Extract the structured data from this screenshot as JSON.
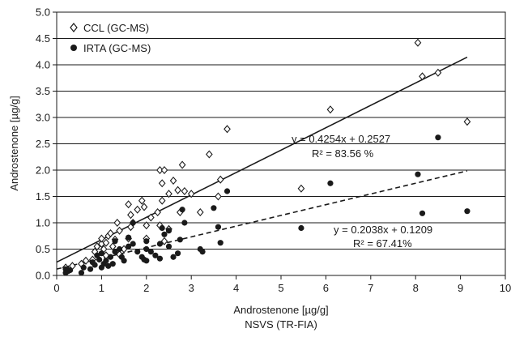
{
  "chart_data": {
    "type": "scatter",
    "xlabel": "Androstenone [µg/g]",
    "xlabel_sub": "NSVS (TR-FIA)",
    "ylabel": "Androstenone [µg/g]",
    "xlim": [
      0,
      10
    ],
    "ylim": [
      0,
      5.0
    ],
    "x_ticks": [
      "0",
      "1",
      "2",
      "3",
      "4",
      "5",
      "6",
      "7",
      "8",
      "9",
      "10"
    ],
    "y_ticks": [
      "0.0",
      "0.5",
      "1.0",
      "1.5",
      "2.0",
      "2.5",
      "3.0",
      "3.5",
      "4.0",
      "4.5",
      "5.0"
    ],
    "grid": "horizontal",
    "legend": "top-left",
    "series": [
      {
        "name": "CCL (GC-MS)",
        "marker": "open-diamond",
        "color": "#1a1a1a",
        "points": [
          [
            0.2,
            0.15
          ],
          [
            0.35,
            0.18
          ],
          [
            0.55,
            0.22
          ],
          [
            0.65,
            0.28
          ],
          [
            0.8,
            0.3
          ],
          [
            0.85,
            0.45
          ],
          [
            0.9,
            0.55
          ],
          [
            1.0,
            0.6
          ],
          [
            1.0,
            0.7
          ],
          [
            1.05,
            0.5
          ],
          [
            1.1,
            0.38
          ],
          [
            1.1,
            0.62
          ],
          [
            1.15,
            0.75
          ],
          [
            1.2,
            0.8
          ],
          [
            1.25,
            0.55
          ],
          [
            1.3,
            0.68
          ],
          [
            1.35,
            1.0
          ],
          [
            1.4,
            0.85
          ],
          [
            1.4,
            0.4
          ],
          [
            1.5,
            0.5
          ],
          [
            1.6,
            0.7
          ],
          [
            1.6,
            1.35
          ],
          [
            1.65,
            1.15
          ],
          [
            1.65,
            0.92
          ],
          [
            1.7,
            1.0
          ],
          [
            1.8,
            1.25
          ],
          [
            1.9,
            1.42
          ],
          [
            1.95,
            1.3
          ],
          [
            2.0,
            0.95
          ],
          [
            2.0,
            0.7
          ],
          [
            2.1,
            1.1
          ],
          [
            2.25,
            1.2
          ],
          [
            2.3,
            0.95
          ],
          [
            2.3,
            2.0
          ],
          [
            2.35,
            1.42
          ],
          [
            2.35,
            1.75
          ],
          [
            2.4,
            2.0
          ],
          [
            2.4,
            0.65
          ],
          [
            2.5,
            1.55
          ],
          [
            2.5,
            0.88
          ],
          [
            2.6,
            1.8
          ],
          [
            2.7,
            1.62
          ],
          [
            2.75,
            1.2
          ],
          [
            2.8,
            2.1
          ],
          [
            2.85,
            1.6
          ],
          [
            3.0,
            1.55
          ],
          [
            3.2,
            1.2
          ],
          [
            3.4,
            2.3
          ],
          [
            3.6,
            1.5
          ],
          [
            3.65,
            1.82
          ],
          [
            3.8,
            2.78
          ],
          [
            5.45,
            1.65
          ],
          [
            6.1,
            3.15
          ],
          [
            8.05,
            4.42
          ],
          [
            8.15,
            3.78
          ],
          [
            8.5,
            3.85
          ],
          [
            9.15,
            2.92
          ]
        ]
      },
      {
        "name": "IRTA (GC-MS)",
        "marker": "filled-circle",
        "color": "#1a1a1a",
        "points": [
          [
            0.2,
            0.05
          ],
          [
            0.2,
            0.12
          ],
          [
            0.25,
            0.08
          ],
          [
            0.3,
            0.1
          ],
          [
            0.55,
            0.05
          ],
          [
            0.6,
            0.15
          ],
          [
            0.75,
            0.12
          ],
          [
            0.8,
            0.25
          ],
          [
            0.85,
            0.2
          ],
          [
            0.9,
            0.38
          ],
          [
            0.95,
            0.3
          ],
          [
            1.0,
            0.15
          ],
          [
            1.0,
            0.42
          ],
          [
            1.05,
            0.22
          ],
          [
            1.1,
            0.28
          ],
          [
            1.15,
            0.18
          ],
          [
            1.2,
            0.35
          ],
          [
            1.25,
            0.22
          ],
          [
            1.3,
            0.45
          ],
          [
            1.3,
            0.65
          ],
          [
            1.4,
            0.5
          ],
          [
            1.45,
            0.35
          ],
          [
            1.5,
            0.28
          ],
          [
            1.6,
            0.55
          ],
          [
            1.6,
            0.72
          ],
          [
            1.7,
            0.6
          ],
          [
            1.7,
            1.0
          ],
          [
            1.8,
            0.45
          ],
          [
            1.9,
            0.35
          ],
          [
            1.95,
            0.3
          ],
          [
            2.0,
            0.28
          ],
          [
            2.0,
            0.5
          ],
          [
            2.0,
            0.65
          ],
          [
            2.1,
            0.45
          ],
          [
            2.2,
            0.38
          ],
          [
            2.3,
            0.6
          ],
          [
            2.3,
            0.32
          ],
          [
            2.35,
            0.9
          ],
          [
            2.4,
            0.78
          ],
          [
            2.5,
            0.85
          ],
          [
            2.5,
            0.55
          ],
          [
            2.6,
            0.35
          ],
          [
            2.7,
            0.42
          ],
          [
            2.75,
            0.68
          ],
          [
            2.8,
            1.25
          ],
          [
            2.85,
            1.0
          ],
          [
            3.2,
            0.5
          ],
          [
            3.25,
            0.45
          ],
          [
            3.5,
            1.28
          ],
          [
            3.6,
            0.92
          ],
          [
            3.65,
            0.62
          ],
          [
            3.8,
            1.6
          ],
          [
            5.45,
            0.9
          ],
          [
            6.1,
            1.75
          ],
          [
            8.05,
            1.92
          ],
          [
            8.15,
            1.18
          ],
          [
            8.5,
            2.62
          ],
          [
            9.15,
            1.22
          ]
        ]
      }
    ],
    "fits": [
      {
        "series": "CCL (GC-MS)",
        "style": "solid",
        "slope": 0.4254,
        "intercept": 0.2527,
        "x_range": [
          0,
          9.15
        ],
        "equation": "y = 0.4254x + 0.2527",
        "r2": "R² = 83.56 %"
      },
      {
        "series": "IRTA (GC-MS)",
        "style": "dashed",
        "slope": 0.2038,
        "intercept": 0.1209,
        "x_range": [
          0,
          9.15
        ],
        "equation": "y = 0.2038x + 0.1209",
        "r2": "R² = 67.41%"
      }
    ]
  }
}
